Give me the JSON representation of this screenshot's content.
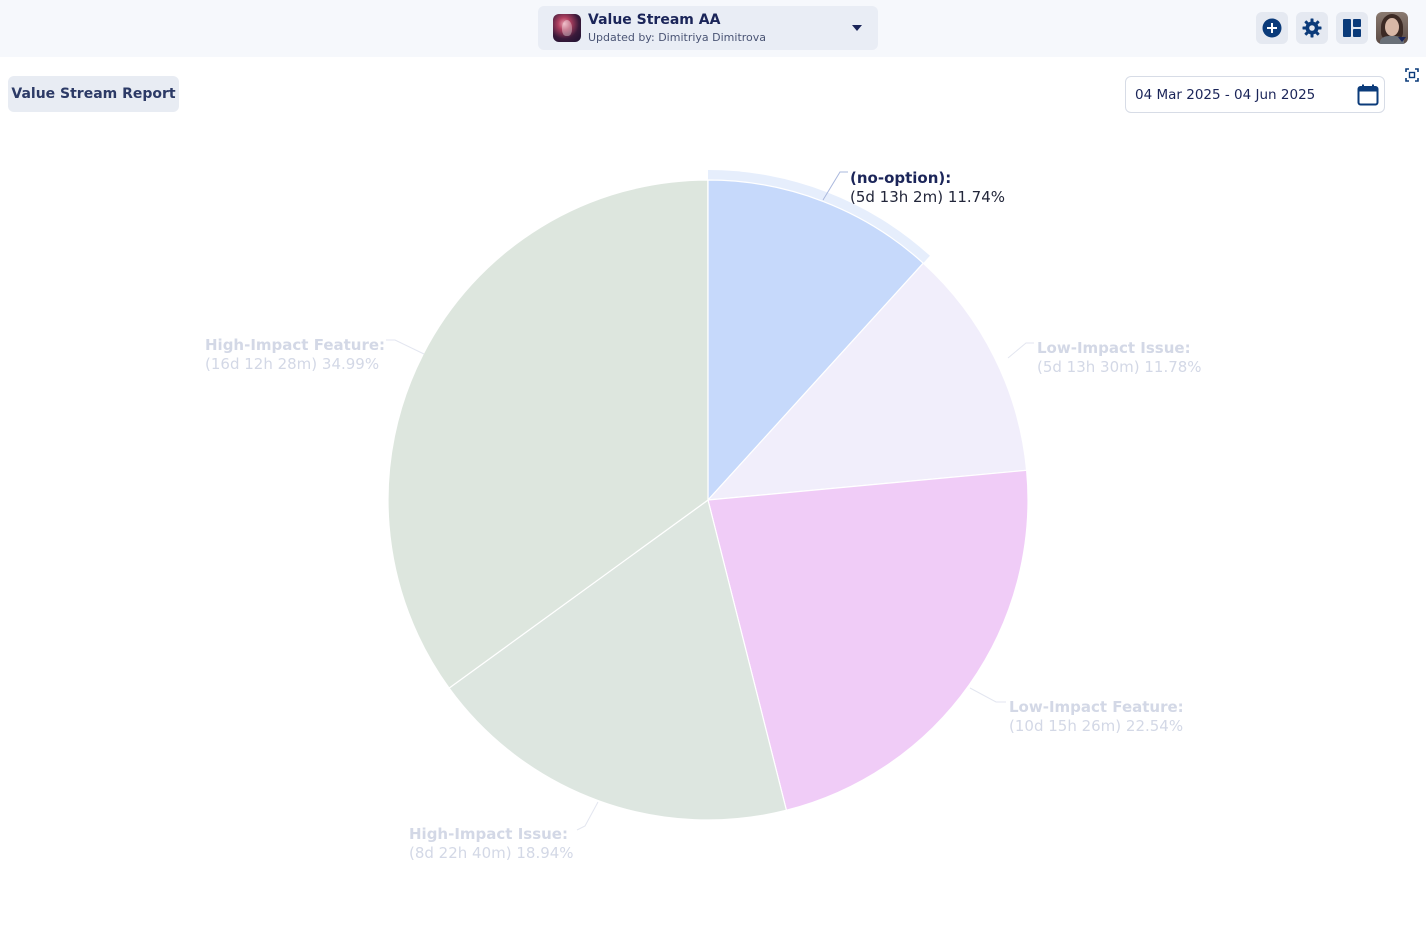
{
  "header": {
    "value_stream": {
      "title": "Value Stream AA",
      "subtitle": "Updated by: Dimitriya Dimitrova"
    },
    "buttons": [
      {
        "name": "add-icon"
      },
      {
        "name": "gear-icon"
      },
      {
        "name": "dashboard-icon"
      }
    ]
  },
  "report_tab": "Value Stream Report",
  "date_range": "04 Mar 2025 - 04 Jun 2025",
  "chart_data": {
    "type": "pie",
    "start": "top",
    "direction": "clockwise",
    "slices": [
      {
        "name": "(no-option):",
        "duration": "(5d 13h 2m)",
        "percent": 11.74,
        "percent_label": "11.74%",
        "color": "#c6d9fb",
        "highlighted": true
      },
      {
        "name": "Low-Impact Issue:",
        "duration": "(5d 13h 30m)",
        "percent": 11.78,
        "percent_label": "11.78%",
        "color": "#f1eefb"
      },
      {
        "name": "Low-Impact Feature:",
        "duration": "(10d 15h 26m)",
        "percent": 22.54,
        "percent_label": "22.54%",
        "color": "#f0ccf7"
      },
      {
        "name": "High-Impact Issue:",
        "duration": "(8d 22h 40m)",
        "percent": 18.94,
        "percent_label": "18.94%",
        "color": "#dde6e0"
      },
      {
        "name": "High-Impact Feature:",
        "duration": "(16d 12h 28m)",
        "percent": 34.99,
        "percent_label": "34.99%",
        "color": "#dde6de"
      }
    ]
  }
}
